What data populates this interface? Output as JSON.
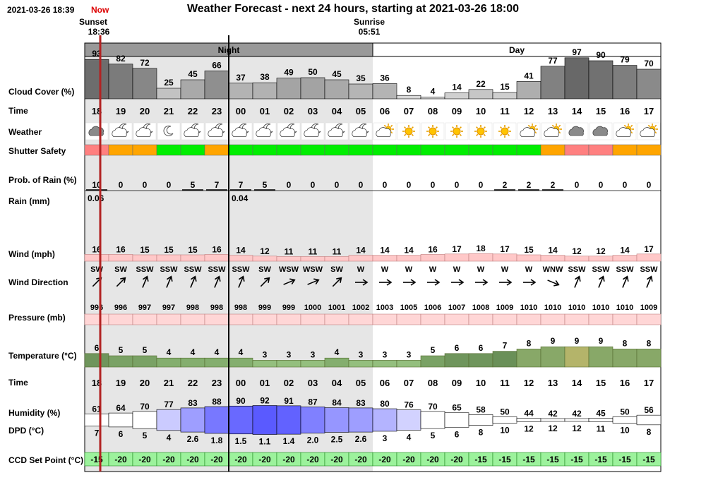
{
  "header": {
    "timestamp": "2021-03-26 18:39",
    "now_label": "Now",
    "title": "Weather Forecast - next 24 hours, starting at 2021-03-26 18:00",
    "sunset_label": "Sunset",
    "sunset_time": "18:36",
    "sunrise_label": "Sunrise",
    "sunrise_time": "05:51",
    "night_label": "Night",
    "day_label": "Day"
  },
  "rows": {
    "cloud_cover": "Cloud Cover (%)",
    "time": "Time",
    "weather": "Weather",
    "shutter_safety": "Shutter Safety",
    "prob_rain": "Prob. of Rain (%)",
    "rain": "Rain (mm)",
    "wind": "Wind (mph)",
    "wind_direction": "Wind Direction",
    "pressure": "Pressure (mb)",
    "temperature": "Temperature (°C)",
    "time2": "Time",
    "humidity": "Humidity (%)",
    "dpd": "DPD (°C)",
    "ccd": "CCD Set Point (°C)"
  },
  "chart_data": {
    "type": "table",
    "hours": [
      "18",
      "19",
      "20",
      "21",
      "22",
      "23",
      "00",
      "01",
      "02",
      "03",
      "04",
      "05",
      "06",
      "07",
      "08",
      "09",
      "10",
      "11",
      "12",
      "13",
      "14",
      "15",
      "16",
      "17"
    ],
    "cloud_cover": [
      93,
      82,
      72,
      25,
      45,
      66,
      37,
      38,
      49,
      50,
      45,
      35,
      36,
      8,
      4,
      14,
      22,
      15,
      41,
      77,
      97,
      90,
      79,
      70
    ],
    "weather_icons": [
      "cloudy-icon",
      "partly-cloudy-night-icon",
      "partly-cloudy-night-icon",
      "moon-icon",
      "partly-cloudy-night-icon",
      "partly-cloudy-night-icon",
      "partly-cloudy-night-icon",
      "partly-cloudy-night-icon",
      "partly-cloudy-night-icon",
      "partly-cloudy-night-icon",
      "partly-cloudy-night-icon",
      "partly-cloudy-night-icon",
      "partly-cloudy-day-icon",
      "sun-icon",
      "sun-icon",
      "sun-icon",
      "sun-icon",
      "sun-icon",
      "partly-cloudy-day-icon",
      "partly-cloudy-day-icon",
      "cloudy-icon",
      "cloudy-icon",
      "partly-cloudy-day-icon",
      "partly-cloudy-day-icon"
    ],
    "shutter_safety": [
      "salmon",
      "orange",
      "orange",
      "green",
      "green",
      "orange",
      "green",
      "green",
      "green",
      "green",
      "green",
      "green",
      "green",
      "green",
      "green",
      "green",
      "green",
      "green",
      "green",
      "orange",
      "salmon",
      "salmon",
      "orange",
      "orange"
    ],
    "shutter_colors": {
      "green": "#00ee00",
      "orange": "#ffa500",
      "salmon": "#ff8080"
    },
    "prob_rain": [
      10,
      0,
      0,
      0,
      5,
      7,
      7,
      5,
      0,
      0,
      0,
      0,
      0,
      0,
      0,
      0,
      0,
      2,
      2,
      2,
      0,
      0,
      0,
      0
    ],
    "rain_mm": [
      "0.06",
      "",
      "",
      "",
      "",
      "",
      "0.04",
      "",
      "",
      "",
      "",
      "",
      "",
      "",
      "",
      "",
      "",
      "",
      "",
      "",
      "",
      "",
      "",
      ""
    ],
    "wind_mph": [
      16,
      16,
      15,
      15,
      15,
      16,
      14,
      12,
      11,
      11,
      11,
      14,
      14,
      14,
      16,
      17,
      18,
      17,
      15,
      14,
      12,
      12,
      14,
      17
    ],
    "wind_direction": [
      "SW",
      "SW",
      "SSW",
      "SSW",
      "SSW",
      "SSW",
      "SSW",
      "SW",
      "WSW",
      "WSW",
      "SW",
      "W",
      "W",
      "W",
      "W",
      "W",
      "W",
      "W",
      "W",
      "WNW",
      "SSW",
      "SSW",
      "SSW",
      "SSW"
    ],
    "pressure_mb": [
      996,
      996,
      997,
      997,
      998,
      998,
      998,
      999,
      999,
      1000,
      1001,
      1002,
      1003,
      1005,
      1006,
      1007,
      1008,
      1009,
      1010,
      1010,
      1010,
      1010,
      1010,
      1009
    ],
    "temperature_c": [
      6,
      5,
      5,
      4,
      4,
      4,
      4,
      3,
      3,
      3,
      4,
      3,
      3,
      3,
      5,
      6,
      6,
      7,
      8,
      9,
      9,
      9,
      8,
      8
    ],
    "humidity_pct": [
      61,
      64,
      70,
      77,
      83,
      88,
      90,
      92,
      91,
      87,
      84,
      83,
      80,
      76,
      70,
      65,
      58,
      50,
      44,
      42,
      42,
      45,
      50,
      56
    ],
    "dpd_c": [
      "7",
      "6",
      "5",
      "4",
      "2.6",
      "1.8",
      "1.5",
      "1.1",
      "1.4",
      "2.0",
      "2.5",
      "2.6",
      "3",
      "4",
      "5",
      "6",
      "8",
      "10",
      "12",
      "12",
      "12",
      "11",
      "10",
      "8"
    ],
    "ccd_set_point_c": [
      -15,
      -20,
      -20,
      -20,
      -20,
      -20,
      -20,
      -20,
      -20,
      -20,
      -20,
      -20,
      -20,
      -20,
      -20,
      -20,
      -15,
      -15,
      -15,
      -15,
      -15,
      -15,
      -15,
      -15
    ]
  }
}
